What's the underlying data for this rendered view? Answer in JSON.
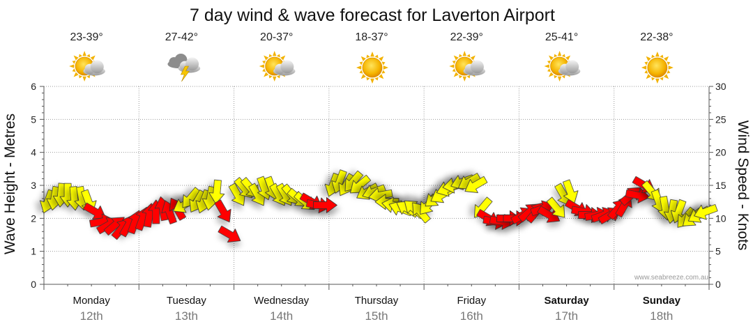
{
  "chart_data": {
    "type": "line",
    "title": "7 day wind & wave forecast for Laverton Airport",
    "ylabel_left": "Wave Height - Metres",
    "ylabel_right": "Wind Speed - Knots",
    "ylim_left": [
      0,
      6
    ],
    "ylim_right": [
      0,
      30
    ],
    "yticks_left": [
      "0",
      "1",
      "2",
      "3",
      "4",
      "5",
      "6"
    ],
    "yticks_right": [
      "0",
      "5",
      "10",
      "15",
      "20",
      "25",
      "30"
    ],
    "grid": "dotted",
    "credit": "www.seabreeze.com.au",
    "days": [
      {
        "name": "Monday",
        "date": "12th",
        "temp": "23-39°",
        "weather": "partly-cloudy-icon",
        "bold": false
      },
      {
        "name": "Tuesday",
        "date": "13th",
        "temp": "27-42°",
        "weather": "thunderstorm-icon",
        "bold": false
      },
      {
        "name": "Wednesday",
        "date": "14th",
        "temp": "20-37°",
        "weather": "partly-cloudy-icon",
        "bold": false
      },
      {
        "name": "Thursday",
        "date": "15th",
        "temp": "18-37°",
        "weather": "sunny-icon",
        "bold": false
      },
      {
        "name": "Friday",
        "date": "16th",
        "temp": "22-39°",
        "weather": "partly-cloudy-icon",
        "bold": false
      },
      {
        "name": "Saturday",
        "date": "17th",
        "temp": "25-41°",
        "weather": "partly-cloudy-icon",
        "bold": true
      },
      {
        "name": "Sunday",
        "date": "18th",
        "temp": "22-38°",
        "weather": "sunny-icon",
        "bold": true
      }
    ],
    "colors": {
      "light_wind": "#ffff00",
      "strong_wind": "#ff0000",
      "outline": "#333333",
      "grid": "#999999",
      "axis": "#555555"
    },
    "wind_series": {
      "name": "Wind",
      "x_days": [
        0.0,
        0.07,
        0.14,
        0.21,
        0.28,
        0.36,
        0.43,
        0.5,
        0.57,
        0.64,
        0.71,
        0.78,
        0.85,
        0.92,
        1.0,
        1.07,
        1.14,
        1.21,
        1.28,
        1.36,
        1.43,
        1.5,
        1.57,
        1.64,
        1.71,
        1.78,
        1.85,
        1.92,
        2.0,
        2.07,
        2.14,
        2.21,
        2.28,
        2.36,
        2.43,
        2.5,
        2.57,
        2.64,
        2.71,
        2.78,
        2.85,
        2.92,
        3.0,
        3.07,
        3.14,
        3.21,
        3.28,
        3.36,
        3.43,
        3.5,
        3.57,
        3.64,
        3.71,
        3.78,
        3.85,
        3.92,
        4.0,
        4.07,
        4.14,
        4.21,
        4.28,
        4.36,
        4.43,
        4.5,
        4.57,
        4.64,
        4.71,
        4.78,
        4.85,
        4.92,
        5.0,
        5.07,
        5.14,
        5.21,
        5.28,
        5.36,
        5.43,
        5.5,
        5.57,
        5.64,
        5.71,
        5.78,
        5.85,
        5.92,
        6.0,
        6.07,
        6.14,
        6.21,
        6.28,
        6.36,
        6.43,
        6.5,
        6.57,
        6.64,
        6.71,
        6.78,
        6.85,
        6.92
      ],
      "speed_knots": [
        12.5,
        13.0,
        13.5,
        13.5,
        13.0,
        13.0,
        12.5,
        11.0,
        9.5,
        9.0,
        9.0,
        8.5,
        9.0,
        9.5,
        10.0,
        10.5,
        11.0,
        11.5,
        11.0,
        11.5,
        12.0,
        13.0,
        12.5,
        12.5,
        13.0,
        14.0,
        11.0,
        7.5,
        13.5,
        14.5,
        14.5,
        13.5,
        14.5,
        14.5,
        13.5,
        13.5,
        13.5,
        13.0,
        12.5,
        12.5,
        12.0,
        12.0,
        15.0,
        15.5,
        15.0,
        15.5,
        15.0,
        14.0,
        14.0,
        13.5,
        12.5,
        12.0,
        11.5,
        11.5,
        11.5,
        11.0,
        12.0,
        13.0,
        13.5,
        14.5,
        15.0,
        15.5,
        15.5,
        15.0,
        11.5,
        10.0,
        9.5,
        9.5,
        10.0,
        10.0,
        10.5,
        11.0,
        11.0,
        11.5,
        10.5,
        11.5,
        13.5,
        14.0,
        11.5,
        11.0,
        10.5,
        10.5,
        10.5,
        10.5,
        11.5,
        12.0,
        13.5,
        13.5,
        15.0,
        14.0,
        12.5,
        11.5,
        11.0,
        11.0,
        10.0,
        10.0,
        10.5,
        11.0
      ],
      "direction_deg": [
        20,
        10,
        5,
        0,
        355,
        350,
        340,
        300,
        260,
        240,
        230,
        220,
        210,
        200,
        200,
        190,
        180,
        170,
        160,
        150,
        60,
        40,
        30,
        20,
        10,
        5,
        330,
        300,
        330,
        320,
        320,
        330,
        340,
        340,
        330,
        330,
        320,
        310,
        310,
        300,
        280,
        270,
        20,
        20,
        30,
        40,
        50,
        60,
        70,
        80,
        90,
        100,
        110,
        120,
        130,
        140,
        40,
        50,
        60,
        70,
        80,
        70,
        60,
        60,
        40,
        300,
        280,
        280,
        270,
        270,
        240,
        230,
        220,
        250,
        300,
        320,
        330,
        340,
        300,
        280,
        270,
        260,
        250,
        240,
        220,
        210,
        230,
        280,
        300,
        320,
        340,
        350,
        10,
        20,
        40,
        50,
        60,
        70
      ]
    }
  }
}
